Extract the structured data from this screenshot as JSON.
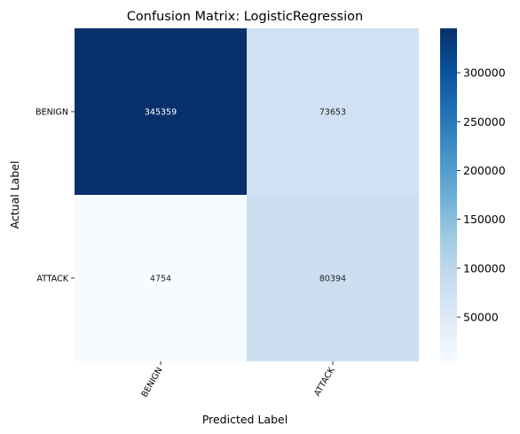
{
  "chart_data": {
    "type": "heatmap",
    "title": "Confusion Matrix: LogisticRegression",
    "xlabel": "Predicted Label",
    "ylabel": "Actual Label",
    "x_categories": [
      "BENIGN",
      "ATTACK"
    ],
    "y_categories": [
      "BENIGN",
      "ATTACK"
    ],
    "values": [
      [
        345359,
        73653
      ],
      [
        4754,
        80394
      ]
    ],
    "colormap": "Blues",
    "colorbar": {
      "min": 4754,
      "max": 345359,
      "ticks": [
        50000,
        100000,
        150000,
        200000,
        250000,
        300000
      ],
      "tick_labels": [
        "50000",
        "100000",
        "150000",
        "200000",
        "250000",
        "300000"
      ]
    },
    "grid": false,
    "legend": "colorbar-right"
  }
}
